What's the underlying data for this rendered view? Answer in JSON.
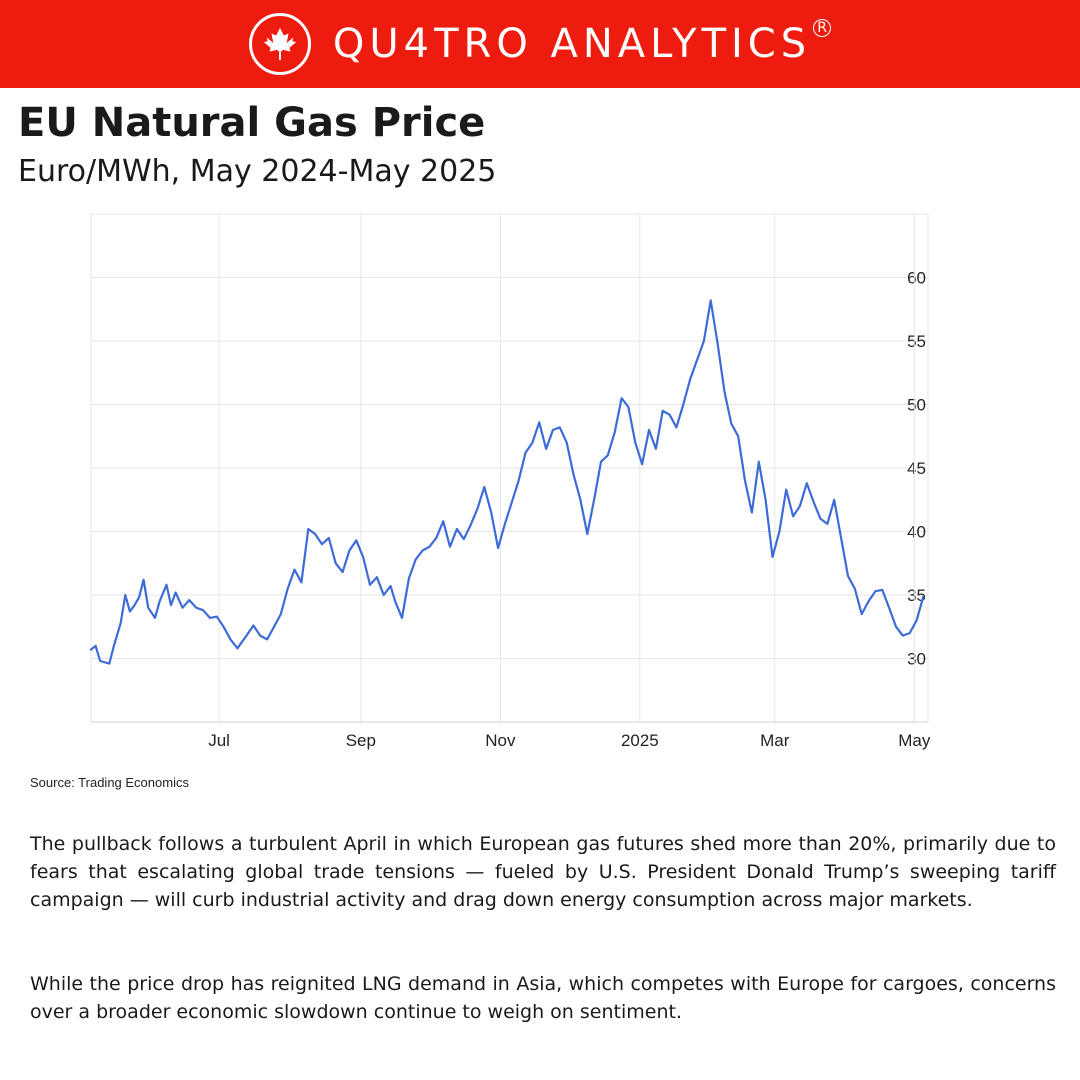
{
  "header": {
    "brand": "QU4TRO ANALYTICS",
    "registered_mark": "R",
    "logo_icon": "maple-leaf-icon"
  },
  "title": "EU Natural Gas Price",
  "subtitle": "Euro/MWh, May 2024-May 2025",
  "source": "Source: Trading Economics",
  "paragraphs": [
    "The pullback follows a turbulent April in which European gas futures shed more than 20%, primarily due to fears that escalating global trade tensions — fueled by U.S. President Donald Trump’s sweeping tariff campaign — will curb industrial activity and drag down energy consumption across major markets.",
    "While the price drop has reignited LNG demand in Asia, which competes with Europe for cargoes, concerns over a broader economic slowdown continue to weigh on sentiment."
  ],
  "colors": {
    "brand_red": "#ee1c0e",
    "line": "#3d6bd8",
    "grid": "#e6e6e6"
  },
  "chart_data": {
    "type": "line",
    "xlim": [
      "2024-05-06",
      "2025-05-07"
    ],
    "ylim": [
      25,
      65
    ],
    "y_ticks": [
      30,
      35,
      40,
      45,
      50,
      55,
      60
    ],
    "x_ticks": [
      {
        "date": "2024-07-01",
        "label": "Jul"
      },
      {
        "date": "2024-09-01",
        "label": "Sep"
      },
      {
        "date": "2024-11-01",
        "label": "Nov"
      },
      {
        "date": "2025-01-01",
        "label": "2025"
      },
      {
        "date": "2025-03-01",
        "label": "Mar"
      },
      {
        "date": "2025-05-01",
        "label": "May"
      }
    ],
    "grid": true,
    "y_axis_side": "right",
    "series": [
      {
        "points": [
          [
            "2024-05-06",
            30.7
          ],
          [
            "2024-05-08",
            31.0
          ],
          [
            "2024-05-10",
            29.8
          ],
          [
            "2024-05-14",
            29.6
          ],
          [
            "2024-05-16",
            31.0
          ],
          [
            "2024-05-19",
            32.8
          ],
          [
            "2024-05-21",
            35.0
          ],
          [
            "2024-05-23",
            33.7
          ],
          [
            "2024-05-25",
            34.2
          ],
          [
            "2024-05-27",
            34.8
          ],
          [
            "2024-05-29",
            36.2
          ],
          [
            "2024-05-31",
            34.0
          ],
          [
            "2024-06-03",
            33.2
          ],
          [
            "2024-06-05",
            34.5
          ],
          [
            "2024-06-08",
            35.8
          ],
          [
            "2024-06-10",
            34.2
          ],
          [
            "2024-06-12",
            35.2
          ],
          [
            "2024-06-15",
            34.0
          ],
          [
            "2024-06-18",
            34.6
          ],
          [
            "2024-06-21",
            34.0
          ],
          [
            "2024-06-24",
            33.8
          ],
          [
            "2024-06-27",
            33.2
          ],
          [
            "2024-06-30",
            33.3
          ],
          [
            "2024-07-03",
            32.5
          ],
          [
            "2024-07-06",
            31.5
          ],
          [
            "2024-07-09",
            30.8
          ],
          [
            "2024-07-13",
            31.8
          ],
          [
            "2024-07-16",
            32.6
          ],
          [
            "2024-07-19",
            31.8
          ],
          [
            "2024-07-22",
            31.5
          ],
          [
            "2024-07-25",
            32.5
          ],
          [
            "2024-07-28",
            33.5
          ],
          [
            "2024-07-31",
            35.5
          ],
          [
            "2024-08-03",
            37.0
          ],
          [
            "2024-08-06",
            36.0
          ],
          [
            "2024-08-09",
            40.2
          ],
          [
            "2024-08-12",
            39.8
          ],
          [
            "2024-08-15",
            39.0
          ],
          [
            "2024-08-18",
            39.5
          ],
          [
            "2024-08-21",
            37.5
          ],
          [
            "2024-08-24",
            36.8
          ],
          [
            "2024-08-27",
            38.5
          ],
          [
            "2024-08-30",
            39.3
          ],
          [
            "2024-09-02",
            38.0
          ],
          [
            "2024-09-05",
            35.8
          ],
          [
            "2024-09-08",
            36.4
          ],
          [
            "2024-09-11",
            35.0
          ],
          [
            "2024-09-14",
            35.7
          ],
          [
            "2024-09-16",
            34.5
          ],
          [
            "2024-09-19",
            33.2
          ],
          [
            "2024-09-22",
            36.3
          ],
          [
            "2024-09-25",
            37.8
          ],
          [
            "2024-09-28",
            38.5
          ],
          [
            "2024-10-01",
            38.8
          ],
          [
            "2024-10-04",
            39.5
          ],
          [
            "2024-10-07",
            40.8
          ],
          [
            "2024-10-10",
            38.8
          ],
          [
            "2024-10-13",
            40.2
          ],
          [
            "2024-10-16",
            39.4
          ],
          [
            "2024-10-19",
            40.5
          ],
          [
            "2024-10-22",
            41.8
          ],
          [
            "2024-10-25",
            43.5
          ],
          [
            "2024-10-28",
            41.5
          ],
          [
            "2024-10-31",
            38.7
          ],
          [
            "2024-11-03",
            40.6
          ],
          [
            "2024-11-06",
            42.3
          ],
          [
            "2024-11-09",
            44.0
          ],
          [
            "2024-11-12",
            46.2
          ],
          [
            "2024-11-15",
            47.0
          ],
          [
            "2024-11-18",
            48.6
          ],
          [
            "2024-11-21",
            46.5
          ],
          [
            "2024-11-24",
            48.0
          ],
          [
            "2024-11-27",
            48.2
          ],
          [
            "2024-11-30",
            47.0
          ],
          [
            "2024-12-03",
            44.5
          ],
          [
            "2024-12-06",
            42.5
          ],
          [
            "2024-12-09",
            39.8
          ],
          [
            "2024-12-12",
            42.5
          ],
          [
            "2024-12-15",
            45.5
          ],
          [
            "2024-12-18",
            46.0
          ],
          [
            "2024-12-21",
            47.8
          ],
          [
            "2024-12-24",
            50.5
          ],
          [
            "2024-12-27",
            49.8
          ],
          [
            "2024-12-30",
            47.0
          ],
          [
            "2025-01-02",
            45.3
          ],
          [
            "2025-01-05",
            48.0
          ],
          [
            "2025-01-08",
            46.5
          ],
          [
            "2025-01-11",
            49.5
          ],
          [
            "2025-01-14",
            49.2
          ],
          [
            "2025-01-17",
            48.2
          ],
          [
            "2025-01-20",
            50.0
          ],
          [
            "2025-01-23",
            52.0
          ],
          [
            "2025-01-26",
            53.5
          ],
          [
            "2025-01-29",
            55.0
          ],
          [
            "2025-02-01",
            58.2
          ],
          [
            "2025-02-04",
            54.8
          ],
          [
            "2025-02-07",
            51.0
          ],
          [
            "2025-02-10",
            48.5
          ],
          [
            "2025-02-13",
            47.5
          ],
          [
            "2025-02-16",
            44.0
          ],
          [
            "2025-02-19",
            41.5
          ],
          [
            "2025-02-22",
            45.5
          ],
          [
            "2025-02-25",
            42.5
          ],
          [
            "2025-02-28",
            38.0
          ],
          [
            "2025-03-03",
            40.0
          ],
          [
            "2025-03-06",
            43.3
          ],
          [
            "2025-03-09",
            41.2
          ],
          [
            "2025-03-12",
            42.0
          ],
          [
            "2025-03-15",
            43.8
          ],
          [
            "2025-03-18",
            42.3
          ],
          [
            "2025-03-21",
            41.0
          ],
          [
            "2025-03-24",
            40.6
          ],
          [
            "2025-03-27",
            42.5
          ],
          [
            "2025-03-30",
            39.5
          ],
          [
            "2025-04-02",
            36.5
          ],
          [
            "2025-04-05",
            35.5
          ],
          [
            "2025-04-08",
            33.5
          ],
          [
            "2025-04-11",
            34.5
          ],
          [
            "2025-04-14",
            35.3
          ],
          [
            "2025-04-17",
            35.4
          ],
          [
            "2025-04-20",
            34.0
          ],
          [
            "2025-04-23",
            32.5
          ],
          [
            "2025-04-26",
            31.8
          ],
          [
            "2025-04-29",
            32.0
          ],
          [
            "2025-05-02",
            33.0
          ],
          [
            "2025-05-05",
            34.9
          ]
        ]
      }
    ]
  }
}
